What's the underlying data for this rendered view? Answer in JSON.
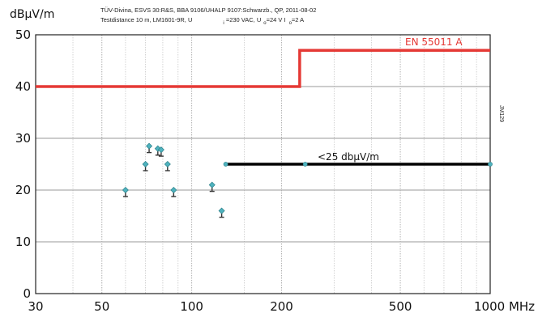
{
  "chart_data": {
    "type": "scatter",
    "ylabel": "dBµV/m",
    "header": {
      "line1": "TÜV-Divina, ESVS 30:R&S, BBA 9106/UHALP 9107:Schwarzb., QP, 2011-08-02",
      "line2a": "Testdistance 10 m, LM1601-9R, U",
      "line2b_sub": "i",
      "line2b": " =230 VAC, U",
      "line2c_sub": "o",
      "line2c": "=24 V I",
      "line2d_sub": "o",
      "line2d": "=2 A"
    },
    "vertical_label": "JM129",
    "x_scale": "log",
    "xlim": [
      30,
      1000
    ],
    "ylim": [
      0,
      50
    ],
    "x_ticks": [
      "30",
      "50",
      "100",
      "200",
      "500",
      "1000 MHz"
    ],
    "x_tick_values": [
      30,
      50,
      100,
      200,
      500,
      1000
    ],
    "y_ticks": [
      "0",
      "10",
      "20",
      "30",
      "40",
      "50"
    ],
    "y_tick_values": [
      0,
      10,
      20,
      30,
      40,
      50
    ],
    "grid": true,
    "limit_line": {
      "name": "EN 55011 A",
      "color": "#e53935",
      "points": [
        [
          30,
          40
        ],
        [
          230,
          40
        ],
        [
          230,
          47
        ],
        [
          1000,
          47
        ]
      ]
    },
    "annotation_line": {
      "label": "<25 dbµV/m",
      "color": "#000000",
      "points": [
        [
          130,
          25
        ],
        [
          1000,
          25
        ]
      ],
      "markers_x": [
        130,
        240,
        1000
      ]
    },
    "points": [
      {
        "x": 60,
        "y": 20
      },
      {
        "x": 70,
        "y": 25
      },
      {
        "x": 72,
        "y": 28.5
      },
      {
        "x": 77,
        "y": 28
      },
      {
        "x": 79,
        "y": 27.8
      },
      {
        "x": 83,
        "y": 25
      },
      {
        "x": 87,
        "y": 20
      },
      {
        "x": 117,
        "y": 21
      },
      {
        "x": 126,
        "y": 16
      }
    ],
    "marker_color": "#4fb3bf"
  }
}
